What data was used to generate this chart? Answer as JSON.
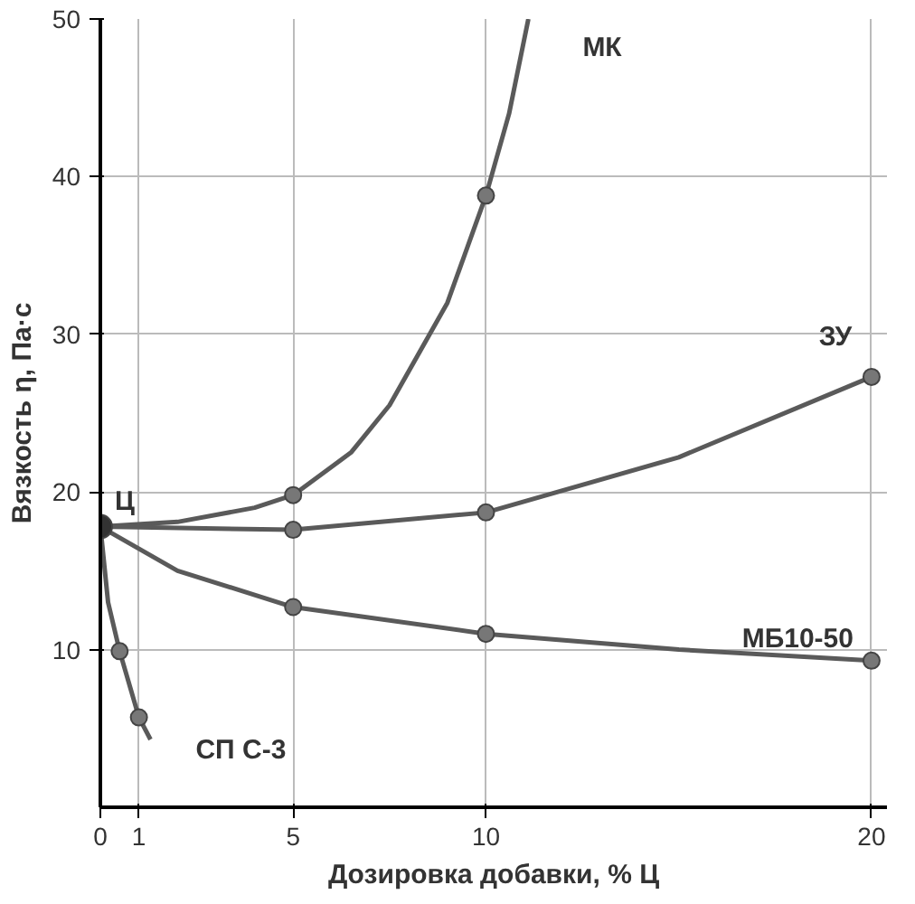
{
  "chart_data": {
    "type": "line",
    "xlabel": "Дозировка добавки, % Ц",
    "ylabel": "Вязкость η, Па·с",
    "xlim": [
      0,
      20.4
    ],
    "ylim": [
      0,
      50
    ],
    "xticks": [
      0,
      1,
      5,
      10,
      20
    ],
    "yticks": [
      10,
      20,
      30,
      40,
      50
    ],
    "grid": true,
    "series": [
      {
        "name": "МК",
        "color": "#5a5a5a",
        "x": [
          0,
          2,
          4,
          5,
          6.5,
          7.5,
          9,
          10,
          10.6,
          11.1
        ],
        "values": [
          17.8,
          18.1,
          19.0,
          19.8,
          22.5,
          25.5,
          32,
          38.8,
          44,
          50
        ]
      },
      {
        "name": "ЗУ",
        "color": "#5a5a5a",
        "x": [
          0,
          5,
          10,
          15,
          20
        ],
        "values": [
          17.8,
          17.6,
          18.7,
          22.2,
          27.3
        ]
      },
      {
        "name": "МБ10-50",
        "color": "#5a5a5a",
        "x": [
          0,
          2,
          5,
          10,
          15,
          20
        ],
        "values": [
          17.8,
          15,
          12.7,
          11.0,
          10.0,
          9.3
        ]
      },
      {
        "name": "СП С-3",
        "color": "#5a5a5a",
        "x": [
          0,
          0.2,
          0.5,
          1,
          1.3
        ],
        "values": [
          17.8,
          13,
          9.9,
          5.7,
          4.3
        ]
      },
      {
        "type": "scatter",
        "color": "#777777",
        "x": [
          5,
          10,
          5,
          10,
          20,
          5,
          10,
          20,
          0.5,
          1
        ],
        "values": [
          19.8,
          38.8,
          17.6,
          18.7,
          27.3,
          12.7,
          11.0,
          9.3,
          9.9,
          5.7
        ]
      },
      {
        "type": "scatter",
        "name": "Ц",
        "color": "#333333",
        "x": [
          0
        ],
        "values": [
          17.8
        ]
      }
    ]
  }
}
